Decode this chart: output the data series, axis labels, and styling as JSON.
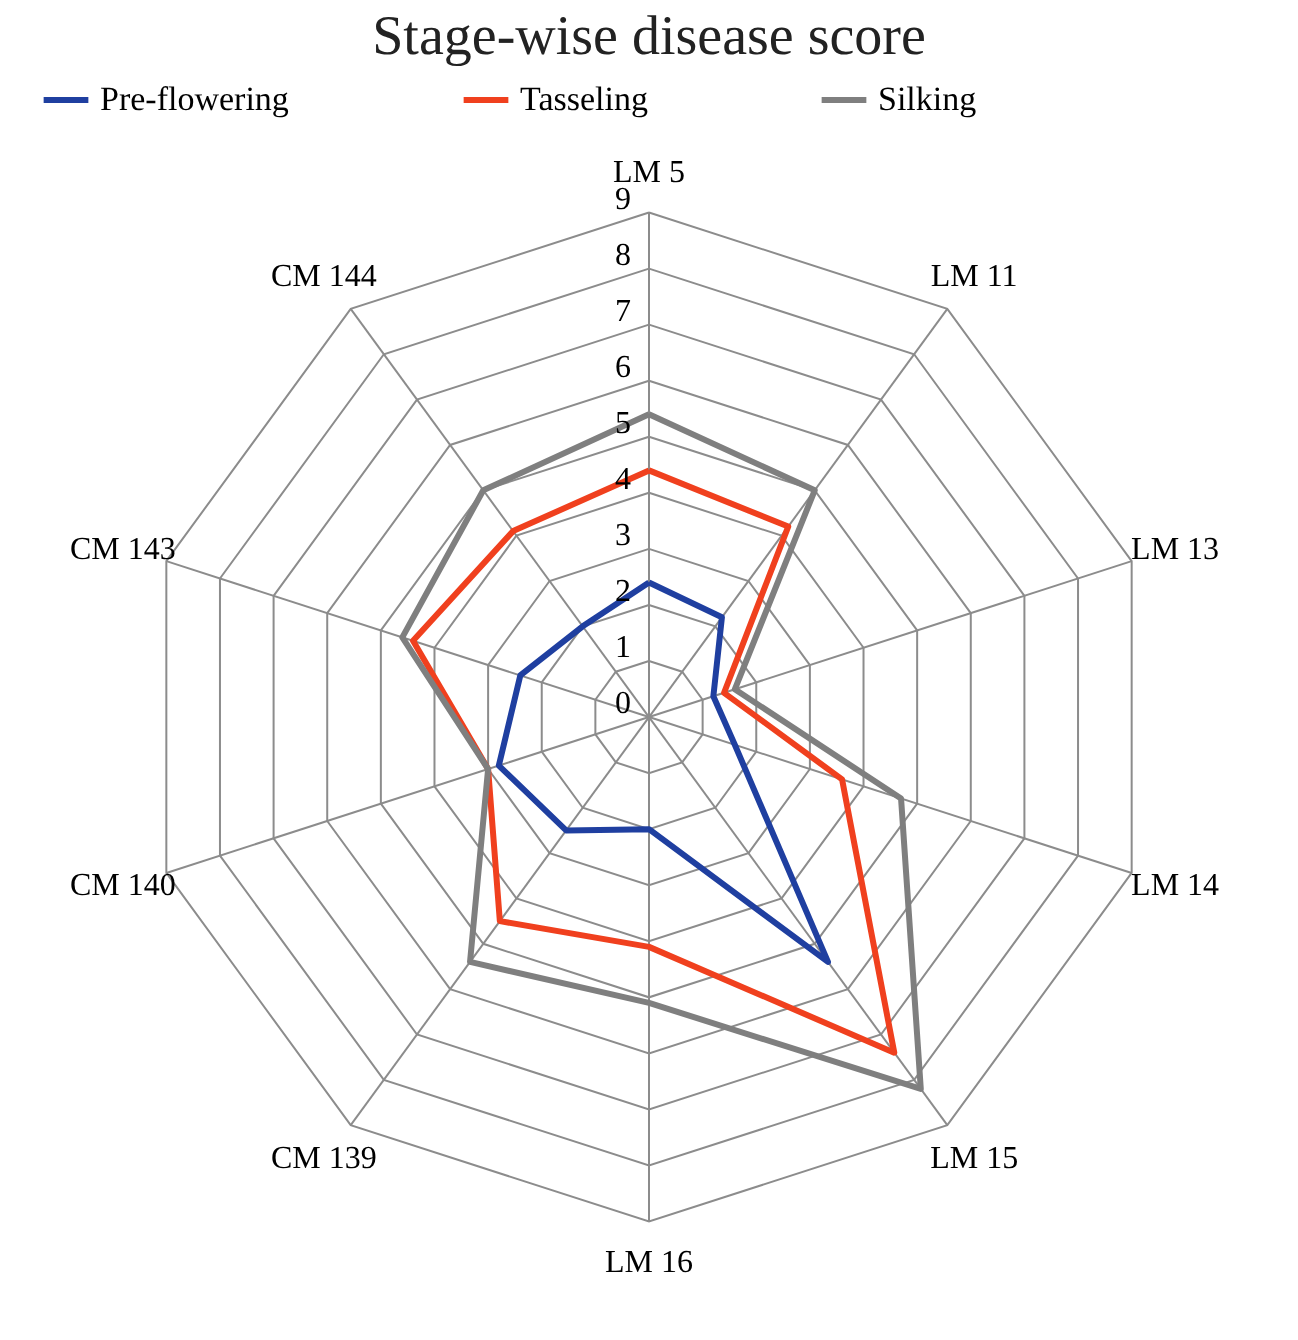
{
  "chart_data": {
    "type": "radar",
    "title": "Stage-wise disease score",
    "categories": [
      "LM 5",
      "LM 11",
      "LM 13",
      "LM 14",
      "LM 15",
      "LM 16",
      "CM 139",
      "CM 140",
      "CM 143",
      "CM 144"
    ],
    "series": [
      {
        "name": "Pre-flowering",
        "color": "#1f3fa0",
        "values": [
          2.4,
          2.2,
          1.2,
          1.6,
          5.4,
          2.0,
          2.5,
          2.8,
          2.4,
          2.0
        ]
      },
      {
        "name": "Tasseling",
        "color": "#f0401e",
        "values": [
          4.4,
          4.2,
          1.4,
          3.6,
          7.4,
          4.1,
          4.5,
          3.0,
          4.4,
          4.1
        ]
      },
      {
        "name": "Silking",
        "color": "#7f7f7f",
        "values": [
          5.4,
          5.0,
          1.6,
          4.7,
          8.2,
          5.1,
          5.4,
          3.0,
          4.6,
          5.0
        ]
      }
    ],
    "ylim": [
      0,
      9
    ],
    "yticks": [
      0,
      1,
      2,
      3,
      4,
      5,
      6,
      7,
      8,
      9
    ],
    "grid": true,
    "legend": "top",
    "marker": "none",
    "line_style": "solid"
  }
}
